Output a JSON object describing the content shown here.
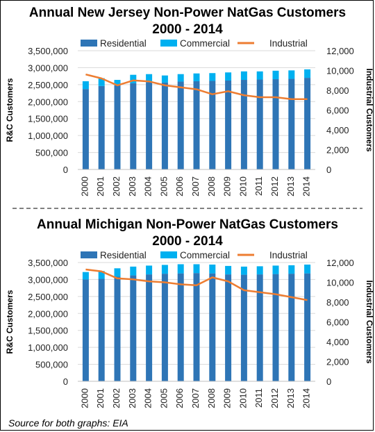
{
  "chart_data": [
    {
      "type": "bar",
      "title": "Annual New Jersey Non-Power NatGas Customers",
      "subtitle": "2000 - 2014",
      "ylabel": "R&C Customers",
      "y2label": "Industrial Customers",
      "ylim": [
        0,
        3500000
      ],
      "y2lim": [
        0,
        12000
      ],
      "yticks": [
        "0",
        "500,000",
        "1,000,000",
        "1,500,000",
        "2,000,000",
        "2,500,000",
        "3,000,000",
        "3,500,000"
      ],
      "y2ticks": [
        "0",
        "2,000",
        "4,000",
        "6,000",
        "8,000",
        "10,000",
        "12,000"
      ],
      "categories": [
        "2000",
        "2001",
        "2002",
        "2003",
        "2004",
        "2005",
        "2006",
        "2007",
        "2008",
        "2009",
        "2010",
        "2011",
        "2012",
        "2013",
        "2014"
      ],
      "legend": [
        "Residential",
        "Commercial",
        "Industrial"
      ],
      "legend_position": "top",
      "grid": true,
      "series": [
        {
          "name": "Residential",
          "type": "stacked-bar",
          "color": "#2e75b6",
          "values": [
            2370000,
            2460000,
            2480000,
            2540000,
            2570000,
            2560000,
            2590000,
            2600000,
            2610000,
            2620000,
            2640000,
            2650000,
            2660000,
            2670000,
            2700000
          ]
        },
        {
          "name": "Commercial",
          "type": "stacked-bar",
          "color": "#00b0f0",
          "values": [
            230000,
            230000,
            160000,
            250000,
            240000,
            210000,
            220000,
            230000,
            230000,
            240000,
            250000,
            240000,
            250000,
            250000,
            250000
          ]
        },
        {
          "name": "Industrial",
          "type": "line",
          "axis": "right",
          "color": "#ed7d31",
          "values": [
            9600,
            9200,
            8500,
            9000,
            8900,
            8500,
            8300,
            8100,
            7600,
            7900,
            7500,
            7300,
            7300,
            7100,
            7100
          ]
        }
      ]
    },
    {
      "type": "bar",
      "title": "Annual Michigan Non-Power NatGas Customers",
      "subtitle": "2000 - 2014",
      "ylabel": "R&C Customers",
      "y2label": "Industrial Customers",
      "ylim": [
        0,
        3500000
      ],
      "y2lim": [
        0,
        12000
      ],
      "yticks": [
        "0",
        "500,000",
        "1,000,000",
        "1,500,000",
        "2,000,000",
        "2,500,000",
        "3,000,000",
        "3,500,000"
      ],
      "y2ticks": [
        "0",
        "2,000",
        "4,000",
        "6,000",
        "8,000",
        "10,000",
        "12,000"
      ],
      "categories": [
        "2000",
        "2001",
        "2002",
        "2003",
        "2004",
        "2005",
        "2006",
        "2007",
        "2008",
        "2009",
        "2010",
        "2011",
        "2012",
        "2013",
        "2014"
      ],
      "legend": [
        "Residential",
        "Commercial",
        "Industrial"
      ],
      "legend_position": "top",
      "grid": true,
      "series": [
        {
          "name": "Residential",
          "type": "stacked-bar",
          "color": "#2e75b6",
          "values": [
            3000000,
            3020000,
            3080000,
            3120000,
            3150000,
            3170000,
            3180000,
            3190000,
            3180000,
            3150000,
            3140000,
            3150000,
            3160000,
            3170000,
            3180000
          ]
        },
        {
          "name": "Commercial",
          "type": "stacked-bar",
          "color": "#00b0f0",
          "values": [
            220000,
            230000,
            250000,
            260000,
            260000,
            260000,
            270000,
            260000,
            260000,
            250000,
            240000,
            240000,
            250000,
            250000,
            260000
          ]
        },
        {
          "name": "Industrial",
          "type": "line",
          "axis": "right",
          "color": "#ed7d31",
          "values": [
            11300,
            11100,
            10400,
            10300,
            10100,
            10000,
            9800,
            9700,
            10500,
            10100,
            9200,
            9000,
            8800,
            8500,
            8200
          ]
        }
      ]
    }
  ],
  "source": "Source for both graphs: EIA"
}
